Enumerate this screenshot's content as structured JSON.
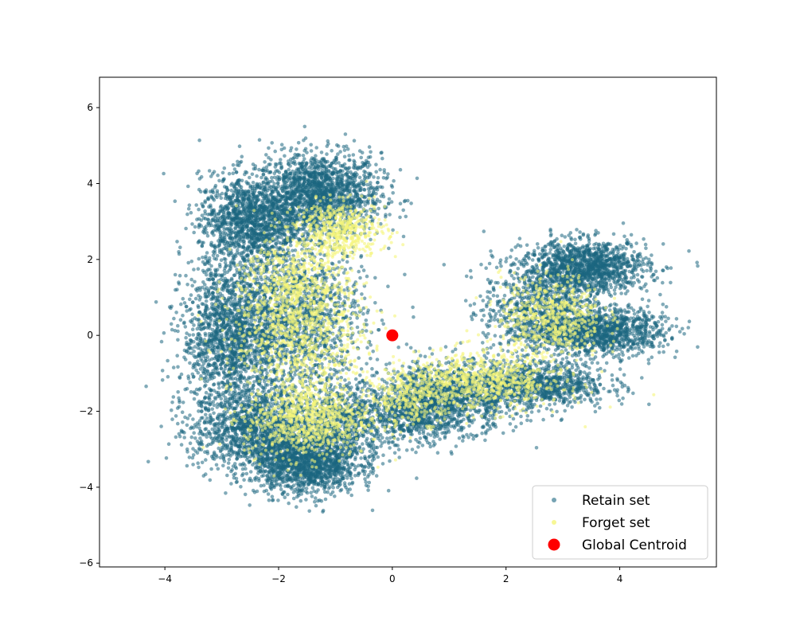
{
  "chart_data": {
    "type": "scatter",
    "title": "",
    "xlabel": "",
    "ylabel": "",
    "xlim": [
      -5.15,
      5.7
    ],
    "ylim": [
      -6.1,
      6.8
    ],
    "xticks": [
      -4,
      -2,
      0,
      2,
      4
    ],
    "yticks": [
      -6,
      -4,
      -2,
      0,
      2,
      4,
      6
    ],
    "xtick_labels": [
      "−4",
      "−2",
      "0",
      "2",
      "4"
    ],
    "ytick_labels": [
      "−6",
      "−4",
      "−2",
      "0",
      "2",
      "4",
      "6"
    ],
    "grid": false,
    "legend_position": "lower-right",
    "series": [
      {
        "name": "Retain set",
        "marker": "circle",
        "color": "#1b6680",
        "opacity": 0.55,
        "clusters": [
          {
            "cx": -1.3,
            "cy": 3.7,
            "sx": 0.55,
            "sy": 0.55,
            "n": 1700
          },
          {
            "cx": -2.5,
            "cy": 3.0,
            "sx": 0.45,
            "sy": 0.6,
            "n": 1300
          },
          {
            "cx": -2.8,
            "cy": 0.0,
            "sx": 0.45,
            "sy": 1.0,
            "n": 1700
          },
          {
            "cx": -1.6,
            "cy": 0.4,
            "sx": 0.55,
            "sy": 1.0,
            "n": 1300
          },
          {
            "cx": -2.3,
            "cy": -2.5,
            "sx": 0.6,
            "sy": 0.55,
            "n": 1500
          },
          {
            "cx": -1.5,
            "cy": -3.4,
            "sx": 0.45,
            "sy": 0.4,
            "n": 1300
          },
          {
            "cx": -0.8,
            "cy": -2.3,
            "sx": 0.4,
            "sy": 0.5,
            "n": 700
          },
          {
            "cx": 3.4,
            "cy": 1.8,
            "sx": 0.55,
            "sy": 0.35,
            "n": 1300
          },
          {
            "cx": 3.7,
            "cy": 0.1,
            "sx": 0.55,
            "sy": 0.3,
            "n": 1100
          },
          {
            "cx": 2.6,
            "cy": 0.6,
            "sx": 0.5,
            "sy": 0.6,
            "n": 900
          },
          {
            "cx": 2.6,
            "cy": -1.3,
            "sx": 0.6,
            "sy": 0.3,
            "n": 900
          },
          {
            "cx": 1.0,
            "cy": -1.6,
            "sx": 0.6,
            "sy": 0.45,
            "n": 1200
          },
          {
            "cx": 0.4,
            "cy": -2.1,
            "sx": 0.35,
            "sy": 0.4,
            "n": 500
          }
        ]
      },
      {
        "name": "Forget set",
        "marker": "circle",
        "color": "#f5f57a",
        "opacity": 0.6,
        "clusters": [
          {
            "cx": -0.9,
            "cy": 2.8,
            "sx": 0.4,
            "sy": 0.35,
            "n": 500
          },
          {
            "cx": -1.8,
            "cy": 1.5,
            "sx": 0.4,
            "sy": 0.6,
            "n": 350
          },
          {
            "cx": -1.6,
            "cy": 0.2,
            "sx": 0.6,
            "sy": 0.9,
            "n": 900
          },
          {
            "cx": -1.5,
            "cy": -2.2,
            "sx": 0.55,
            "sy": 0.5,
            "n": 800
          },
          {
            "cx": 2.8,
            "cy": 0.5,
            "sx": 0.45,
            "sy": 0.55,
            "n": 550
          },
          {
            "cx": 1.6,
            "cy": -1.2,
            "sx": 0.7,
            "sy": 0.4,
            "n": 700
          },
          {
            "cx": 0.4,
            "cy": -1.6,
            "sx": 0.4,
            "sy": 0.35,
            "n": 300
          }
        ]
      },
      {
        "name": "Global Centroid",
        "marker": "circle",
        "color": "#ff0000",
        "opacity": 1,
        "points": [
          {
            "x": 0.0,
            "y": 0.0
          }
        ]
      }
    ]
  }
}
